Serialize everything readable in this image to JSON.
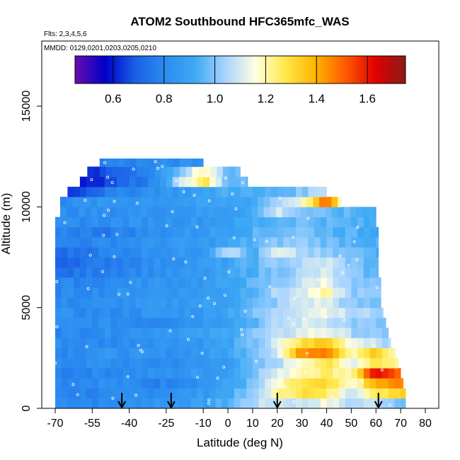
{
  "header": {
    "title": "ATOM2 Southbound HFC365mfc_WAS",
    "flights_note": "Flts: 2,3,4,5,6",
    "dates_note": "MMDD: 0129,0201,0203,0205,0210"
  },
  "colors": {
    "scale": [
      "#6a0dad",
      "#0000c8",
      "#1a5fe6",
      "#2b8cf0",
      "#3fa9f5",
      "#a8d4ff",
      "#ffffe0",
      "#ffe84a",
      "#ffb400",
      "#ff5a00",
      "#e00000",
      "#8b1a1a"
    ],
    "arrow": "#000000",
    "marker": "#ffffff"
  },
  "chart_data": {
    "type": "heatmap",
    "title": "ATOM2 Southbound HFC365mfc_WAS",
    "xlabel": "Latitude (deg N)",
    "ylabel": "Altitude (m)",
    "xlim": [
      -70,
      85
    ],
    "ylim": [
      0,
      17500
    ],
    "x_ticks": [
      -70,
      -55,
      -40,
      -25,
      -10,
      0,
      10,
      20,
      30,
      40,
      50,
      60,
      70,
      80
    ],
    "y_ticks": [
      0,
      5000,
      10000,
      15000
    ],
    "colorbar": {
      "range": [
        0.45,
        1.75
      ],
      "ticks": [
        0.6,
        0.8,
        1.0,
        1.2,
        1.4,
        1.6
      ],
      "tick_labels": [
        "0.6",
        "0.8",
        "1.0",
        "1.2",
        "1.4",
        "1.6"
      ]
    },
    "arrow_latitudes": [
      -43,
      -23,
      20,
      61
    ],
    "altitude_bins": [
      {
        "y0": 0,
        "y1": 500,
        "lat_min": -70,
        "lat_max": 72,
        "lat": [
          -70,
          -50,
          -30,
          -10,
          0,
          10,
          20,
          30,
          40,
          50,
          60,
          70
        ],
        "values": [
          0.82,
          0.8,
          0.85,
          0.88,
          0.95,
          1.05,
          1.1,
          1.08,
          1.15,
          1.05,
          1.08,
          1.0
        ]
      },
      {
        "y0": 500,
        "y1": 1000,
        "lat_min": -70,
        "lat_max": 72,
        "lat": [
          -70,
          -50,
          -30,
          -10,
          0,
          10,
          20,
          30,
          40,
          50,
          60,
          70
        ],
        "values": [
          0.8,
          0.78,
          0.82,
          0.86,
          0.92,
          1.0,
          1.2,
          1.3,
          1.25,
          1.1,
          1.25,
          1.35
        ]
      },
      {
        "y0": 1000,
        "y1": 1500,
        "lat_min": -70,
        "lat_max": 71,
        "lat": [
          -70,
          -50,
          -30,
          -10,
          0,
          10,
          20,
          30,
          40,
          50,
          60,
          70
        ],
        "values": [
          0.8,
          0.82,
          0.78,
          0.84,
          0.9,
          0.98,
          1.15,
          1.28,
          1.3,
          1.15,
          1.4,
          1.45
        ]
      },
      {
        "y0": 1500,
        "y1": 2000,
        "lat_min": -70,
        "lat_max": 70,
        "lat": [
          -70,
          -50,
          -30,
          -10,
          0,
          10,
          20,
          30,
          40,
          50,
          60,
          70
        ],
        "values": [
          0.78,
          0.8,
          0.82,
          0.86,
          0.88,
          1.0,
          1.1,
          1.22,
          1.25,
          1.2,
          1.65,
          1.45
        ]
      },
      {
        "y0": 2000,
        "y1": 2500,
        "lat_min": -70,
        "lat_max": 69,
        "lat": [
          -70,
          -50,
          -30,
          -10,
          0,
          10,
          20,
          30,
          40,
          50,
          60,
          70
        ],
        "values": [
          0.8,
          0.82,
          0.8,
          0.84,
          0.88,
          0.95,
          1.05,
          1.2,
          1.28,
          1.12,
          1.3,
          1.2
        ]
      },
      {
        "y0": 2500,
        "y1": 3000,
        "lat_min": -70,
        "lat_max": 68,
        "lat": [
          -70,
          -50,
          -30,
          -10,
          0,
          10,
          20,
          30,
          40,
          50,
          60,
          70
        ],
        "values": [
          0.8,
          0.84,
          0.82,
          0.86,
          0.9,
          1.0,
          1.1,
          1.45,
          1.5,
          1.2,
          1.35,
          1.1
        ]
      },
      {
        "y0": 3000,
        "y1": 3500,
        "lat_min": -70,
        "lat_max": 66,
        "lat": [
          -70,
          -50,
          -30,
          -10,
          0,
          10,
          20,
          30,
          40,
          50,
          60,
          70
        ],
        "values": [
          0.82,
          0.8,
          0.84,
          0.86,
          0.9,
          0.98,
          1.1,
          1.3,
          1.35,
          1.15,
          1.1,
          1.0
        ]
      },
      {
        "y0": 3500,
        "y1": 4000,
        "lat_min": -70,
        "lat_max": 65,
        "lat": [
          -70,
          -50,
          -30,
          -10,
          0,
          10,
          20,
          30,
          40,
          50,
          60,
          70
        ],
        "values": [
          0.8,
          0.82,
          0.86,
          0.88,
          0.92,
          1.0,
          1.05,
          1.12,
          1.15,
          1.05,
          1.0,
          0.95
        ]
      },
      {
        "y0": 4000,
        "y1": 4500,
        "lat_min": -70,
        "lat_max": 64,
        "lat": [
          -70,
          -50,
          -30,
          -10,
          0,
          10,
          20,
          30,
          40,
          50,
          60,
          70
        ],
        "values": [
          0.8,
          0.82,
          0.8,
          0.86,
          0.9,
          0.95,
          1.05,
          1.1,
          1.1,
          1.02,
          1.0,
          0.95
        ]
      },
      {
        "y0": 4500,
        "y1": 5000,
        "lat_min": -70,
        "lat_max": 63,
        "lat": [
          -70,
          -50,
          -30,
          -10,
          0,
          10,
          20,
          30,
          40,
          50,
          60,
          70
        ],
        "values": [
          0.82,
          0.8,
          0.84,
          0.86,
          0.92,
          0.98,
          1.05,
          1.12,
          1.15,
          1.05,
          1.05,
          1.0
        ]
      },
      {
        "y0": 5000,
        "y1": 5500,
        "lat_min": -70,
        "lat_max": 62,
        "lat": [
          -70,
          -50,
          -30,
          -10,
          0,
          10,
          20,
          30,
          40,
          50,
          60,
          70
        ],
        "values": [
          0.8,
          0.82,
          0.84,
          0.88,
          0.9,
          0.95,
          1.02,
          1.1,
          1.12,
          1.0,
          0.98,
          0.95
        ]
      },
      {
        "y0": 5500,
        "y1": 6000,
        "lat_min": -70,
        "lat_max": 62,
        "lat": [
          -70,
          -50,
          -30,
          -10,
          0,
          10,
          20,
          30,
          40,
          50,
          60,
          70
        ],
        "values": [
          0.8,
          0.82,
          0.85,
          0.86,
          0.9,
          0.96,
          1.05,
          1.1,
          1.2,
          1.02,
          1.0,
          0.95
        ]
      },
      {
        "y0": 6000,
        "y1": 6500,
        "lat_min": -70,
        "lat_max": 62,
        "lat": [
          -70,
          -50,
          -30,
          -10,
          0,
          10,
          20,
          30,
          40,
          50,
          60,
          70
        ],
        "values": [
          0.78,
          0.8,
          0.84,
          0.86,
          0.9,
          0.95,
          1.0,
          1.08,
          1.15,
          1.0,
          0.98,
          0.95
        ]
      },
      {
        "y0": 6500,
        "y1": 7000,
        "lat_min": -70,
        "lat_max": 61,
        "lat": [
          -70,
          -50,
          -30,
          -10,
          0,
          10,
          20,
          30,
          40,
          50,
          60,
          70
        ],
        "values": [
          0.72,
          0.78,
          0.82,
          0.85,
          0.9,
          0.95,
          1.0,
          1.05,
          1.1,
          1.0,
          0.95,
          0.9
        ]
      },
      {
        "y0": 7000,
        "y1": 7500,
        "lat_min": -70,
        "lat_max": 61,
        "lat": [
          -70,
          -50,
          -30,
          -10,
          0,
          10,
          20,
          30,
          40,
          50,
          60,
          70
        ],
        "values": [
          0.7,
          0.76,
          0.82,
          0.86,
          0.9,
          0.95,
          1.02,
          1.05,
          1.1,
          1.0,
          0.95,
          0.9
        ]
      },
      {
        "y0": 7500,
        "y1": 8000,
        "lat_min": -70,
        "lat_max": 61,
        "lat": [
          -70,
          -50,
          -30,
          -10,
          0,
          10,
          20,
          30,
          40,
          50,
          60,
          70
        ],
        "values": [
          0.72,
          0.78,
          0.84,
          0.86,
          1.1,
          0.92,
          1.12,
          1.05,
          1.0,
          0.98,
          0.95,
          0.9
        ]
      },
      {
        "y0": 8000,
        "y1": 8500,
        "lat_min": -70,
        "lat_max": 61,
        "lat": [
          -70,
          -50,
          -30,
          -10,
          0,
          10,
          20,
          30,
          40,
          50,
          60,
          70
        ],
        "values": [
          0.78,
          0.8,
          0.84,
          0.86,
          0.9,
          0.95,
          1.0,
          1.02,
          0.98,
          0.96,
          0.94,
          0.9
        ]
      },
      {
        "y0": 8500,
        "y1": 9000,
        "lat_min": -70,
        "lat_max": 61,
        "lat": [
          -70,
          -50,
          -30,
          -10,
          0,
          10,
          20,
          30,
          40,
          50,
          60,
          70
        ],
        "values": [
          0.8,
          0.76,
          0.82,
          0.86,
          0.9,
          0.94,
          0.98,
          1.0,
          0.96,
          0.94,
          0.92,
          0.9
        ]
      },
      {
        "y0": 9000,
        "y1": 9500,
        "lat_min": -70,
        "lat_max": 60,
        "lat": [
          -70,
          -50,
          -30,
          -10,
          0,
          10,
          20,
          30,
          40,
          50,
          60,
          70
        ],
        "values": [
          0.8,
          0.82,
          0.84,
          0.86,
          0.88,
          0.92,
          0.96,
          0.98,
          0.96,
          0.94,
          0.92,
          0.9
        ]
      },
      {
        "y0": 9500,
        "y1": 10000,
        "lat_min": -68,
        "lat_max": 60,
        "lat": [
          -70,
          -50,
          -30,
          -10,
          0,
          10,
          20,
          30,
          40,
          50,
          60,
          70
        ],
        "values": [
          0.82,
          0.82,
          0.84,
          0.86,
          0.88,
          0.92,
          1.1,
          1.0,
          0.96,
          0.95,
          0.92,
          0.9
        ]
      },
      {
        "y0": 10000,
        "y1": 10500,
        "lat_min": -68,
        "lat_max": 46,
        "lat": [
          -70,
          -50,
          -30,
          -10,
          0,
          10,
          20,
          30,
          40,
          50,
          60,
          70
        ],
        "values": [
          0.8,
          0.84,
          0.86,
          0.88,
          0.9,
          0.92,
          1.05,
          1.15,
          1.5,
          1.0,
          0.95,
          0.9
        ]
      },
      {
        "y0": 10500,
        "y1": 11000,
        "lat_min": -65,
        "lat_max": 40,
        "lat": [
          -70,
          -50,
          -30,
          -10,
          0,
          10,
          20,
          30,
          40,
          50,
          60,
          70
        ],
        "values": [
          0.6,
          0.75,
          0.84,
          0.88,
          0.95,
          0.92,
          0.95,
          1.0,
          1.1,
          1.0,
          0.95,
          0.9
        ]
      },
      {
        "y0": 11000,
        "y1": 11500,
        "lat_min": -60,
        "lat_max": 8,
        "lat": [
          -70,
          -50,
          -30,
          -10,
          0,
          10,
          20,
          30,
          40,
          50,
          60,
          70
        ],
        "values": [
          0.55,
          0.65,
          0.8,
          1.3,
          0.96,
          0.95,
          0.95,
          0.95,
          0.95,
          0.95,
          0.95,
          0.95
        ]
      },
      {
        "y0": 11500,
        "y1": 12000,
        "lat_min": -57,
        "lat_max": 5,
        "lat": [
          -70,
          -50,
          -30,
          -10,
          0,
          10,
          20,
          30,
          40,
          50,
          60,
          70
        ],
        "values": [
          0.6,
          0.65,
          0.8,
          1.2,
          0.98,
          0.95,
          0.95,
          0.95,
          0.95,
          0.95,
          0.95,
          0.95
        ]
      },
      {
        "y0": 12000,
        "y1": 12400,
        "lat_min": -52,
        "lat_max": -10,
        "lat": [
          -70,
          -50,
          -30,
          -10,
          0,
          10,
          20,
          30,
          40,
          50,
          60,
          70
        ],
        "values": [
          0.6,
          0.78,
          0.8,
          0.82,
          0.85,
          0.85,
          0.85,
          0.85,
          0.85,
          0.85,
          0.85,
          0.85
        ]
      }
    ]
  }
}
